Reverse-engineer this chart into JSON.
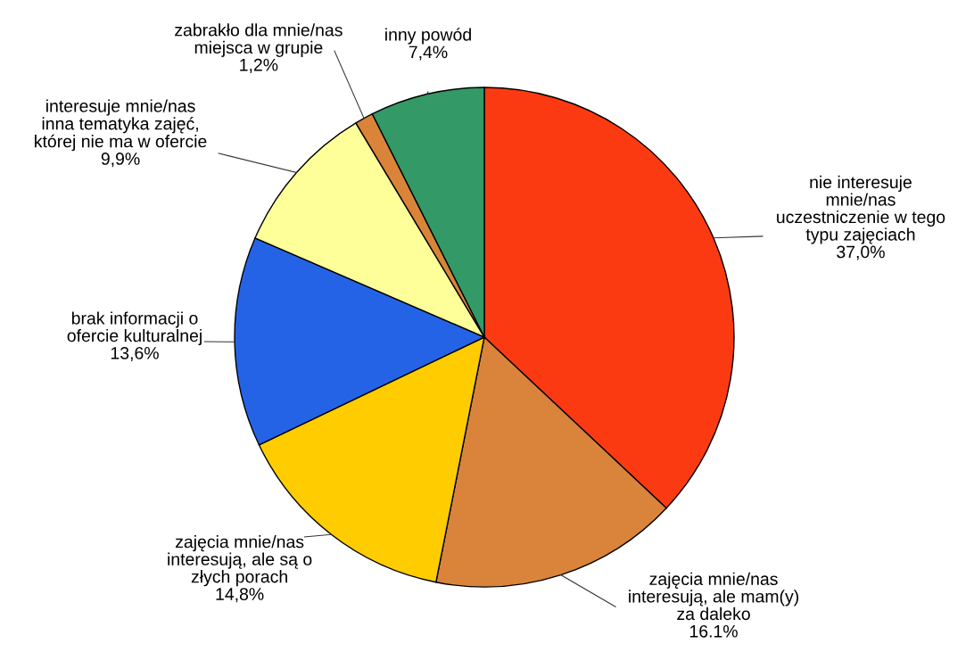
{
  "chart_data": {
    "type": "pie",
    "categories": [
      "nie interesuje\nmnie/nas\nuczestniczenie w tego\ntypu zajęciach",
      "zajęcia mnie/nas\ninteresują, ale mam(y)\nza daleko",
      "zajęcia mnie/nas\ninteresują, ale są o\nzłych porach",
      "brak informacji o\nofercie kulturalnej",
      "interesuje mnie/nas\ninna tematyka zajęć,\nktórej nie ma w ofercie",
      "zabrakło dla mnie/nas\nmiejsca w grupie",
      "inny powód"
    ],
    "values": [
      37.0,
      16.1,
      14.8,
      13.6,
      9.9,
      1.2,
      7.4
    ],
    "value_labels": [
      "37,0%",
      "16.1%",
      "14,8%",
      "13,6%",
      "9,9%",
      "1,2%",
      "7,4%"
    ],
    "colors": [
      "#fc3a12",
      "#d9843a",
      "#ffcc00",
      "#2563e6",
      "#ffff99",
      "#d98438",
      "#339966"
    ]
  }
}
